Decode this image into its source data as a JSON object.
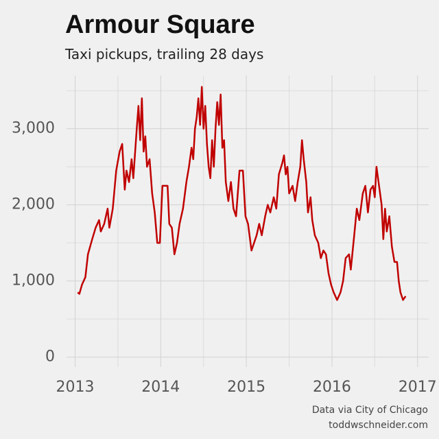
{
  "chart_data": {
    "type": "line",
    "title": "Armour Square",
    "subtitle": "Taxi pickups, trailing 28 days",
    "source": "Data via City of Chicago",
    "credit": "toddwschneider.com",
    "color": "#c00000",
    "grid": true,
    "xlim": [
      2012.9,
      2017.13
    ],
    "ylim": [
      -130,
      3700
    ],
    "xticks": [
      2013,
      2014,
      2015,
      2016,
      2017
    ],
    "x_minor_grid": [
      2013.5,
      2014.5,
      2015.5,
      2016.5
    ],
    "yticks": [
      0,
      {
        "value": 1000,
        "label": "1,000"
      },
      {
        "value": 2000,
        "label": "2,000"
      },
      {
        "value": 3000,
        "label": "3,000"
      }
    ],
    "y_minor_grid": [
      500,
      1500,
      2500,
      3500
    ],
    "x": [
      2013.03,
      2013.05,
      2013.08,
      2013.12,
      2013.15,
      2013.2,
      2013.24,
      2013.28,
      2013.3,
      2013.34,
      2013.38,
      2013.4,
      2013.44,
      2013.48,
      2013.52,
      2013.55,
      2013.58,
      2013.6,
      2013.63,
      2013.66,
      2013.68,
      2013.72,
      2013.74,
      2013.76,
      2013.78,
      2013.8,
      2013.82,
      2013.84,
      2013.87,
      2013.9,
      2013.93,
      2013.96,
      2013.99,
      2014.02,
      2014.05,
      2014.08,
      2014.1,
      2014.13,
      2014.16,
      2014.19,
      2014.22,
      2014.26,
      2014.3,
      2014.33,
      2014.36,
      2014.38,
      2014.4,
      2014.42,
      2014.44,
      2014.46,
      2014.48,
      2014.5,
      2014.52,
      2014.54,
      2014.56,
      2014.58,
      2014.6,
      2014.62,
      2014.64,
      2014.66,
      2014.68,
      2014.7,
      2014.72,
      2014.74,
      2014.76,
      2014.79,
      2014.82,
      2014.85,
      2014.88,
      2014.92,
      2014.96,
      2014.99,
      2015.02,
      2015.06,
      2015.09,
      2015.12,
      2015.15,
      2015.18,
      2015.22,
      2015.25,
      2015.28,
      2015.32,
      2015.35,
      2015.38,
      2015.42,
      2015.44,
      2015.46,
      2015.48,
      2015.5,
      2015.54,
      2015.57,
      2015.6,
      2015.63,
      2015.65,
      2015.67,
      2015.7,
      2015.72,
      2015.75,
      2015.77,
      2015.8,
      2015.84,
      2015.87,
      2015.9,
      2015.93,
      2015.96,
      2015.99,
      2016.02,
      2016.06,
      2016.1,
      2016.13,
      2016.16,
      2016.2,
      2016.22,
      2016.26,
      2016.29,
      2016.32,
      2016.36,
      2016.39,
      2016.42,
      2016.45,
      2016.48,
      2016.5,
      2016.52,
      2016.55,
      2016.58,
      2016.6,
      2016.62,
      2016.64,
      2016.67,
      2016.7,
      2016.73,
      2016.76,
      2016.78,
      2016.8,
      2016.83,
      2016.86
    ],
    "values": [
      850,
      830,
      950,
      1050,
      1350,
      1550,
      1700,
      1800,
      1650,
      1750,
      1950,
      1700,
      1950,
      2450,
      2700,
      2800,
      2200,
      2450,
      2300,
      2600,
      2350,
      3000,
      3300,
      2850,
      3400,
      2700,
      2900,
      2500,
      2600,
      2150,
      1900,
      1500,
      1500,
      2250,
      2250,
      2250,
      1750,
      1700,
      1350,
      1500,
      1750,
      1950,
      2300,
      2500,
      2750,
      2600,
      3000,
      3150,
      3400,
      3050,
      3550,
      3000,
      3300,
      2800,
      2500,
      2350,
      2850,
      2500,
      3000,
      3350,
      3050,
      3450,
      2750,
      2850,
      2300,
      2050,
      2300,
      1950,
      1850,
      2450,
      2450,
      1850,
      1750,
      1400,
      1500,
      1600,
      1750,
      1600,
      1850,
      2000,
      1900,
      2100,
      1950,
      2400,
      2550,
      2650,
      2400,
      2500,
      2150,
      2250,
      2050,
      2300,
      2500,
      2850,
      2600,
      2300,
      1900,
      2100,
      1800,
      1600,
      1500,
      1300,
      1400,
      1350,
      1100,
      950,
      850,
      750,
      850,
      1000,
      1300,
      1350,
      1150,
      1600,
      1950,
      1800,
      2150,
      2250,
      1900,
      2200,
      2250,
      2100,
      2500,
      2250,
      2000,
      1550,
      1950,
      1650,
      1850,
      1450,
      1250,
      1250,
      1000,
      850,
      750,
      800
    ]
  }
}
